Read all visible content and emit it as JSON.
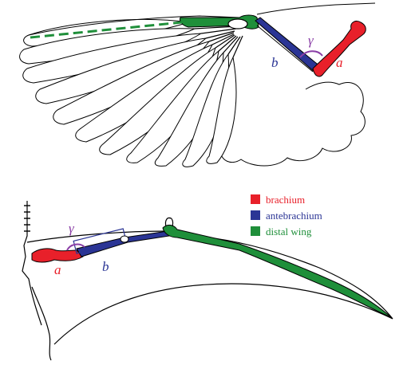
{
  "colors": {
    "brachium": "#e8202a",
    "antebrachium": "#2b3595",
    "distal_wing": "#1f8f3a",
    "gamma": "#8a3fa6",
    "outline": "#000000"
  },
  "top_figure": {
    "segment_labels": {
      "a": "a",
      "b": "b"
    },
    "angle_label": "γ"
  },
  "bottom_figure": {
    "segment_labels": {
      "a": "a",
      "b": "b"
    },
    "angle_label": "γ"
  },
  "legend": {
    "items": [
      {
        "key": "brachium",
        "label": "brachium",
        "color": "#e8202a"
      },
      {
        "key": "antebrachium",
        "label": "antebrachium",
        "color": "#2b3595"
      },
      {
        "key": "distal_wing",
        "label": "distal wing",
        "color": "#1f8f3a"
      }
    ]
  }
}
